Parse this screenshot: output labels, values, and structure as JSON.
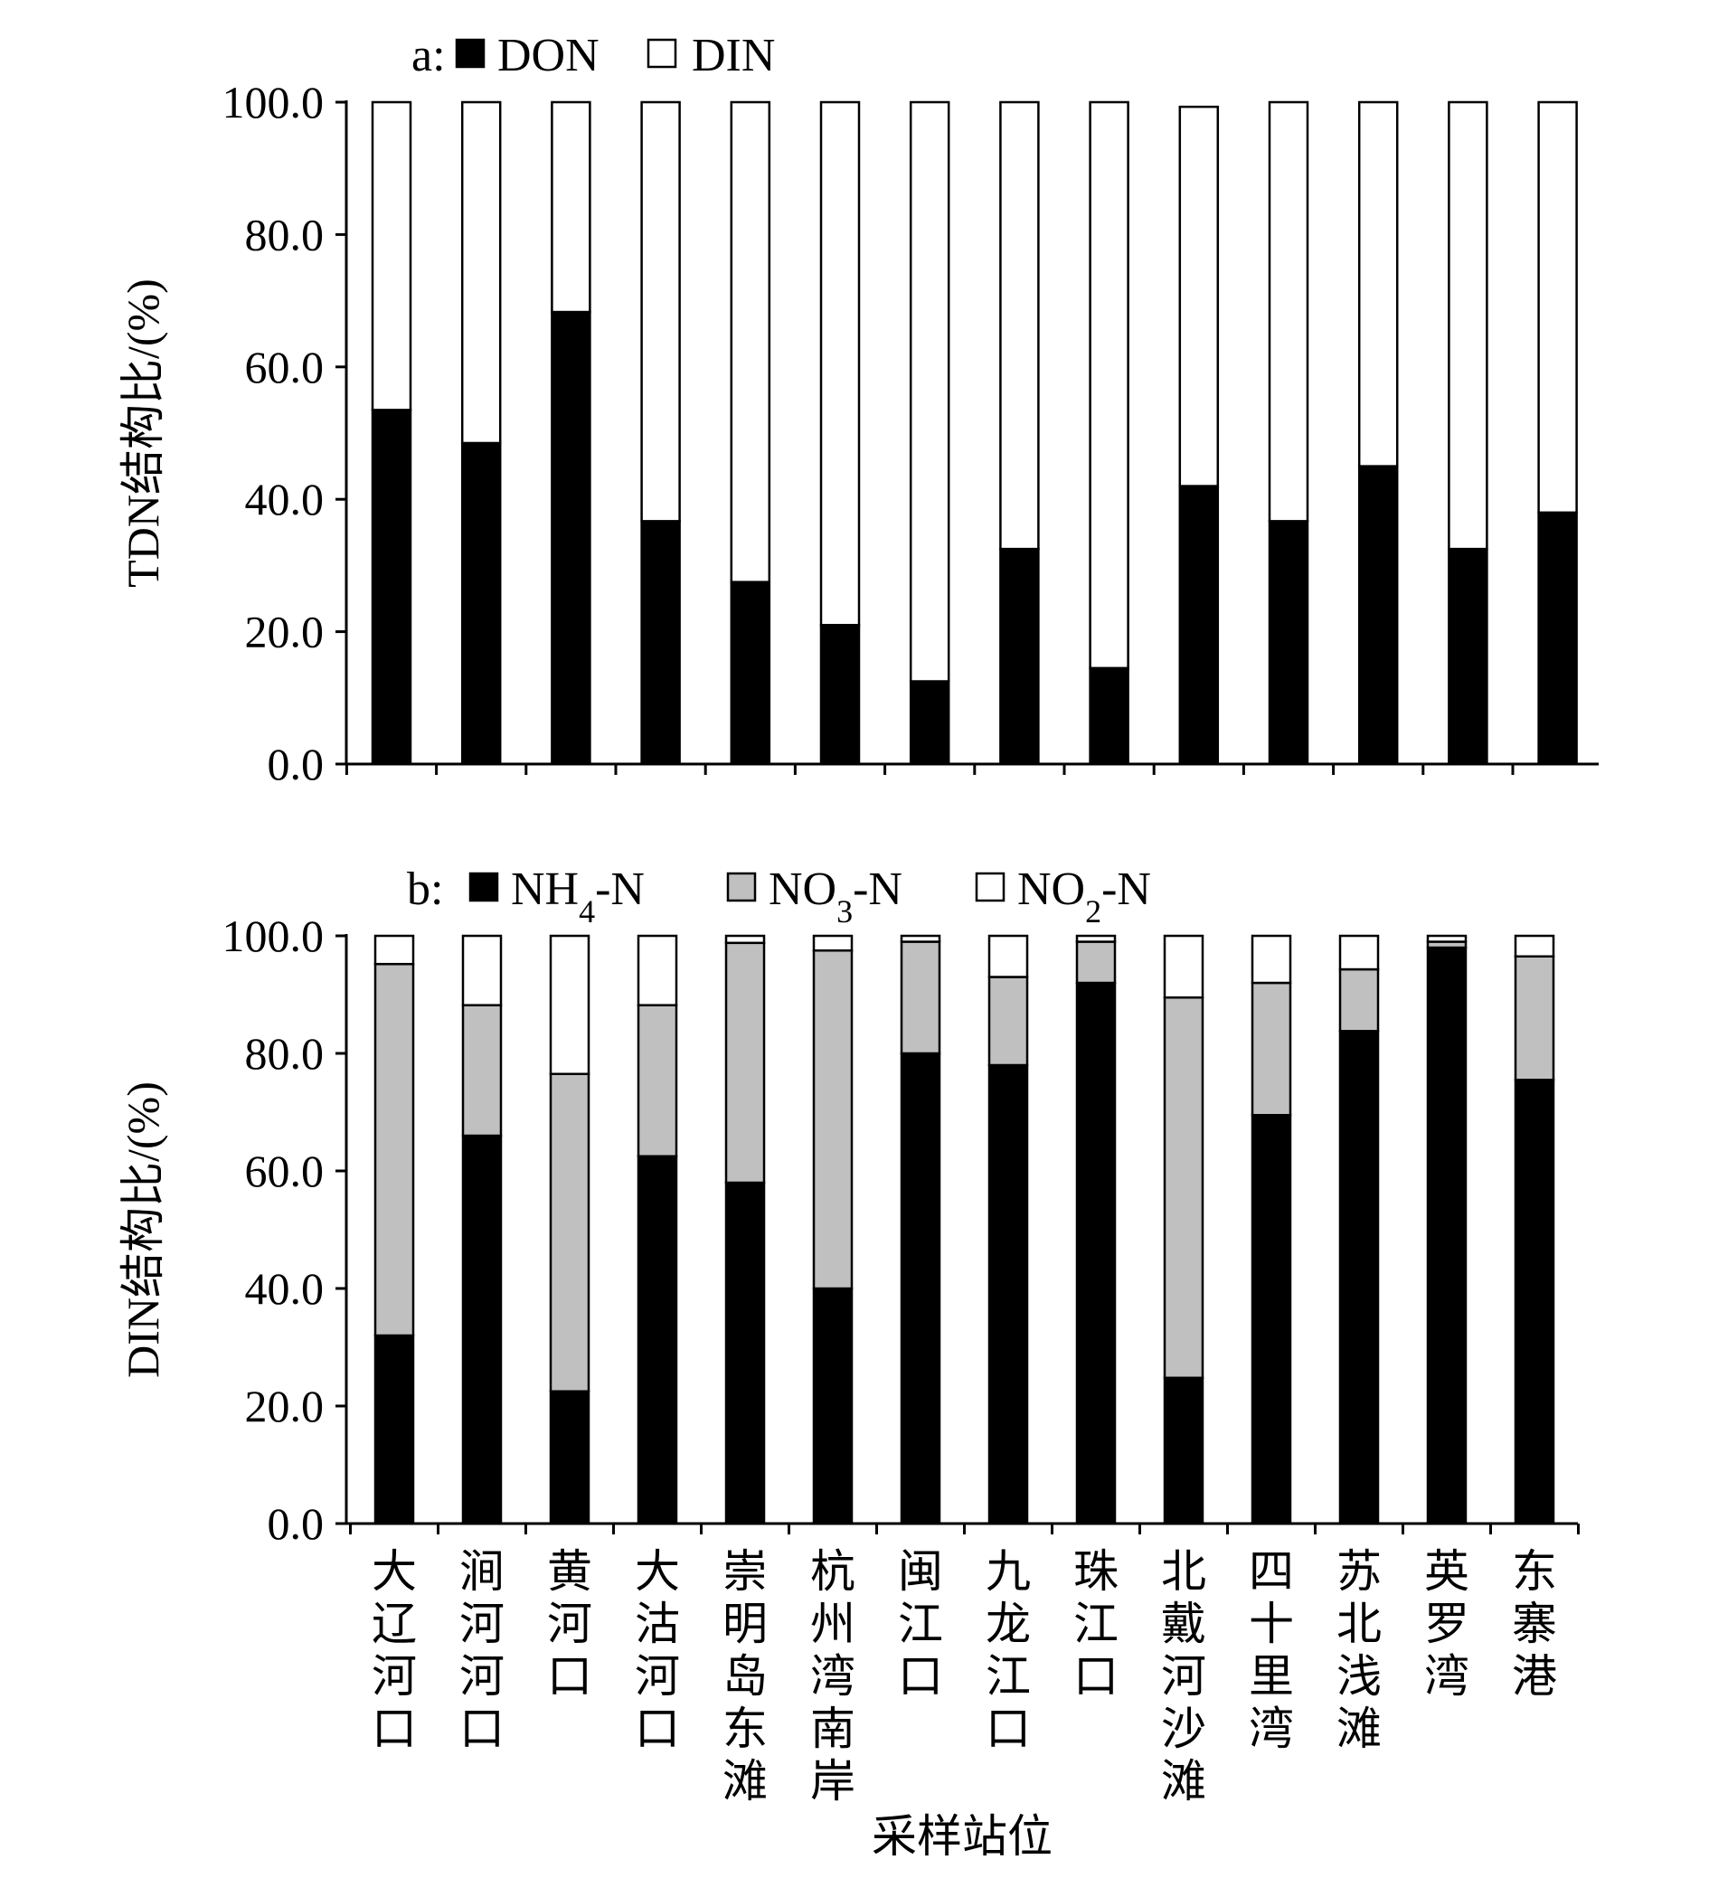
{
  "chart_data": [
    {
      "type": "bar",
      "stacked": true,
      "panel_label": "a:",
      "ylabel": "TDN结构比/(%)",
      "xlabel": "",
      "ylim": [
        0,
        100
      ],
      "yticks": [
        "0.0",
        "20.0",
        "40.0",
        "60.0",
        "80.0",
        "100.0"
      ],
      "categories": [
        "大辽河口",
        "涧河河口",
        "黄河口",
        "大沽河口",
        "崇明岛东滩",
        "杭州湾南岸",
        "闽江口",
        "九龙江口",
        "珠江口",
        "北戴河沙滩",
        "四十里湾",
        "苏北浅滩",
        "英罗湾",
        "东寨港"
      ],
      "show_category_labels": false,
      "series": [
        {
          "name": "DON",
          "color": "#000000",
          "values": [
            53.5,
            48.5,
            68.3,
            36.7,
            27.5,
            21.0,
            12.5,
            32.5,
            14.5,
            42.0,
            36.7,
            45.0,
            32.5,
            38.0
          ]
        },
        {
          "name": "DIN",
          "color": "#ffffff",
          "values": [
            46.5,
            51.5,
            31.7,
            63.3,
            72.5,
            79.0,
            87.5,
            67.5,
            85.5,
            57.3,
            63.3,
            55.0,
            67.5,
            62.0
          ]
        }
      ],
      "legend": "top-left"
    },
    {
      "type": "bar",
      "stacked": true,
      "panel_label": "b:",
      "ylabel": "DIN结构比/(%)",
      "xlabel": "采样站位",
      "ylim": [
        0,
        100
      ],
      "yticks": [
        "0.0",
        "20.0",
        "40.0",
        "60.0",
        "80.0",
        "100.0"
      ],
      "categories": [
        "大辽河口",
        "涧河河口",
        "黄河口",
        "大沽河口",
        "崇明岛东滩",
        "杭州湾南岸",
        "闽江口",
        "九龙江口",
        "珠江口",
        "北戴河沙滩",
        "四十里湾",
        "苏北浅滩",
        "英罗湾",
        "东寨港"
      ],
      "show_category_labels": true,
      "series": [
        {
          "name": "NH₄-N",
          "color": "#000000",
          "values": [
            32.0,
            66.0,
            22.5,
            62.5,
            58.0,
            40.0,
            80.0,
            78.0,
            92.0,
            24.8,
            69.5,
            83.8,
            98.0,
            75.5
          ]
        },
        {
          "name": "NO₃-N",
          "color": "#c0c0c0",
          "values": [
            63.2,
            22.2,
            54.0,
            25.7,
            40.8,
            57.5,
            19.0,
            15.0,
            7.0,
            64.7,
            22.5,
            10.5,
            1.0,
            21.0
          ]
        },
        {
          "name": "NO₂-N",
          "color": "#ffffff",
          "values": [
            4.8,
            11.8,
            23.5,
            11.8,
            1.2,
            2.5,
            1.0,
            7.0,
            1.0,
            10.5,
            8.0,
            5.7,
            1.0,
            3.5
          ]
        }
      ],
      "legend": "top-left"
    }
  ]
}
